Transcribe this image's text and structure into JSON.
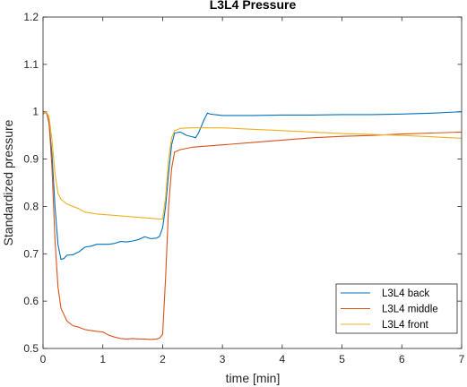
{
  "chart_data": {
    "type": "line",
    "title": "L3L4 Pressure",
    "xlabel": "time [min]",
    "ylabel": "Standardized pressure",
    "xlim": [
      0,
      7
    ],
    "ylim": [
      0.5,
      1.2
    ],
    "xticks": [
      0,
      1,
      2,
      3,
      4,
      5,
      6,
      7
    ],
    "xtick_labels": [
      "0",
      "1",
      "2",
      "3",
      "4",
      "5",
      "6",
      "7"
    ],
    "yticks": [
      0.5,
      0.6,
      0.7,
      0.8,
      0.9,
      1.0,
      1.1,
      1.2
    ],
    "ytick_labels": [
      "0.5",
      "0.6",
      "0.7",
      "0.8",
      "0.9",
      "1",
      "1.1",
      "1.2"
    ],
    "grid": false,
    "legend_position": "bottom-right",
    "series": [
      {
        "name": "L3L4 back",
        "color": "#0072BD",
        "points": [
          [
            0,
            0.995
          ],
          [
            0.03,
            1.0
          ],
          [
            0.07,
            0.995
          ],
          [
            0.1,
            0.975
          ],
          [
            0.15,
            0.91
          ],
          [
            0.2,
            0.8
          ],
          [
            0.25,
            0.72
          ],
          [
            0.3,
            0.688
          ],
          [
            0.35,
            0.69
          ],
          [
            0.4,
            0.697
          ],
          [
            0.5,
            0.698
          ],
          [
            0.6,
            0.704
          ],
          [
            0.7,
            0.714
          ],
          [
            0.8,
            0.716
          ],
          [
            0.9,
            0.72
          ],
          [
            1.0,
            0.72
          ],
          [
            1.1,
            0.72
          ],
          [
            1.2,
            0.722
          ],
          [
            1.3,
            0.726
          ],
          [
            1.4,
            0.725
          ],
          [
            1.5,
            0.727
          ],
          [
            1.6,
            0.73
          ],
          [
            1.7,
            0.736
          ],
          [
            1.8,
            0.732
          ],
          [
            1.9,
            0.733
          ],
          [
            1.95,
            0.737
          ],
          [
            2.0,
            0.755
          ],
          [
            2.05,
            0.8
          ],
          [
            2.1,
            0.87
          ],
          [
            2.15,
            0.93
          ],
          [
            2.2,
            0.955
          ],
          [
            2.3,
            0.957
          ],
          [
            2.4,
            0.95
          ],
          [
            2.5,
            0.947
          ],
          [
            2.55,
            0.945
          ],
          [
            2.6,
            0.955
          ],
          [
            2.7,
            0.985
          ],
          [
            2.75,
            0.997
          ],
          [
            2.8,
            0.995
          ],
          [
            3.0,
            0.992
          ],
          [
            3.5,
            0.992
          ],
          [
            4.0,
            0.993
          ],
          [
            4.5,
            0.993
          ],
          [
            5.0,
            0.994
          ],
          [
            5.5,
            0.994
          ],
          [
            6.0,
            0.995
          ],
          [
            6.5,
            0.997
          ],
          [
            7.0,
            1.0
          ]
        ]
      },
      {
        "name": "L3L4 middle",
        "color": "#D95319",
        "points": [
          [
            0,
            0.995
          ],
          [
            0.05,
            1.0
          ],
          [
            0.1,
            0.98
          ],
          [
            0.15,
            0.88
          ],
          [
            0.2,
            0.73
          ],
          [
            0.25,
            0.63
          ],
          [
            0.3,
            0.585
          ],
          [
            0.4,
            0.558
          ],
          [
            0.5,
            0.548
          ],
          [
            0.6,
            0.545
          ],
          [
            0.7,
            0.54
          ],
          [
            0.8,
            0.538
          ],
          [
            0.9,
            0.536
          ],
          [
            1.0,
            0.535
          ],
          [
            1.1,
            0.528
          ],
          [
            1.2,
            0.524
          ],
          [
            1.3,
            0.521
          ],
          [
            1.4,
            0.52
          ],
          [
            1.5,
            0.521
          ],
          [
            1.6,
            0.52
          ],
          [
            1.7,
            0.52
          ],
          [
            1.8,
            0.519
          ],
          [
            1.9,
            0.52
          ],
          [
            1.95,
            0.522
          ],
          [
            2.0,
            0.53
          ],
          [
            2.05,
            0.65
          ],
          [
            2.1,
            0.8
          ],
          [
            2.15,
            0.88
          ],
          [
            2.2,
            0.915
          ],
          [
            2.3,
            0.92
          ],
          [
            2.5,
            0.925
          ],
          [
            3.0,
            0.93
          ],
          [
            3.5,
            0.935
          ],
          [
            4.0,
            0.94
          ],
          [
            4.5,
            0.945
          ],
          [
            5.0,
            0.948
          ],
          [
            5.5,
            0.95
          ],
          [
            6.0,
            0.953
          ],
          [
            6.5,
            0.955
          ],
          [
            7.0,
            0.957
          ]
        ]
      },
      {
        "name": "L3L4 front",
        "color": "#EDB120",
        "points": [
          [
            0,
            0.997
          ],
          [
            0.05,
            1.0
          ],
          [
            0.1,
            0.99
          ],
          [
            0.15,
            0.94
          ],
          [
            0.2,
            0.87
          ],
          [
            0.25,
            0.828
          ],
          [
            0.3,
            0.815
          ],
          [
            0.4,
            0.805
          ],
          [
            0.5,
            0.8
          ],
          [
            0.6,
            0.795
          ],
          [
            0.7,
            0.788
          ],
          [
            0.8,
            0.786
          ],
          [
            0.9,
            0.784
          ],
          [
            1.0,
            0.783
          ],
          [
            1.2,
            0.781
          ],
          [
            1.4,
            0.779
          ],
          [
            1.6,
            0.777
          ],
          [
            1.8,
            0.775
          ],
          [
            2.0,
            0.773
          ],
          [
            2.05,
            0.82
          ],
          [
            2.1,
            0.9
          ],
          [
            2.15,
            0.945
          ],
          [
            2.2,
            0.96
          ],
          [
            2.3,
            0.965
          ],
          [
            2.5,
            0.966
          ],
          [
            3.0,
            0.966
          ],
          [
            3.5,
            0.963
          ],
          [
            4.0,
            0.96
          ],
          [
            4.5,
            0.957
          ],
          [
            5.0,
            0.954
          ],
          [
            5.5,
            0.952
          ],
          [
            6.0,
            0.95
          ],
          [
            6.5,
            0.947
          ],
          [
            7.0,
            0.944
          ]
        ]
      }
    ]
  }
}
